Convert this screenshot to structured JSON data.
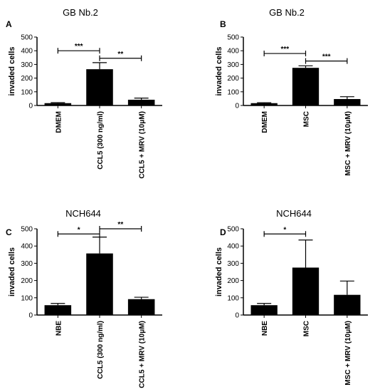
{
  "chart_data": [
    {
      "panel": "A",
      "type": "bar",
      "title": "GB Nb.2",
      "ylabel": "invaded cells",
      "ylim": [
        0,
        500
      ],
      "yticks": [
        0,
        100,
        200,
        300,
        400,
        500
      ],
      "categories": [
        "DMEM",
        "CCL5 (300 ng/ml)",
        "CCL5 + MRV (10μM)"
      ],
      "values": [
        17,
        265,
        42
      ],
      "errors": [
        4,
        48,
        12
      ],
      "significance": [
        {
          "from": 0,
          "to": 1,
          "label": "***",
          "y": 400
        },
        {
          "from": 1,
          "to": 2,
          "label": "**",
          "y": 345
        }
      ]
    },
    {
      "panel": "B",
      "type": "bar",
      "title": "GB Nb.2",
      "ylabel": "invaded cells",
      "ylim": [
        0,
        500
      ],
      "yticks": [
        0,
        100,
        200,
        300,
        400,
        500
      ],
      "categories": [
        "DMEM",
        "MSC",
        "MSC + MRV (10μM)"
      ],
      "values": [
        17,
        275,
        47
      ],
      "errors": [
        3,
        15,
        17
      ],
      "significance": [
        {
          "from": 0,
          "to": 1,
          "label": "***",
          "y": 380
        },
        {
          "from": 1,
          "to": 2,
          "label": "***",
          "y": 325
        }
      ]
    },
    {
      "panel": "C",
      "type": "bar",
      "title": "NCH644",
      "ylabel": "invaded cells",
      "ylim": [
        0,
        500
      ],
      "yticks": [
        0,
        100,
        200,
        300,
        400,
        500
      ],
      "categories": [
        "NBE",
        "CCL5 (300 ng/ml)",
        "CCL5 + MRV (10μM)"
      ],
      "values": [
        57,
        357,
        92
      ],
      "errors": [
        10,
        95,
        11
      ],
      "significance": [
        {
          "from": 0,
          "to": 1,
          "label": "*",
          "y": 470
        },
        {
          "from": 1,
          "to": 2,
          "label": "**",
          "y": 500
        }
      ]
    },
    {
      "panel": "D",
      "type": "bar",
      "title": "NCH644",
      "ylabel": "invaded cells",
      "ylim": [
        0,
        500
      ],
      "yticks": [
        0,
        100,
        200,
        300,
        400,
        500
      ],
      "categories": [
        "NBE",
        "MSC",
        "MSC + MRV (10μM)"
      ],
      "values": [
        57,
        275,
        117
      ],
      "errors": [
        10,
        160,
        80
      ],
      "significance": [
        {
          "from": 0,
          "to": 1,
          "label": "*",
          "y": 470
        }
      ]
    }
  ]
}
